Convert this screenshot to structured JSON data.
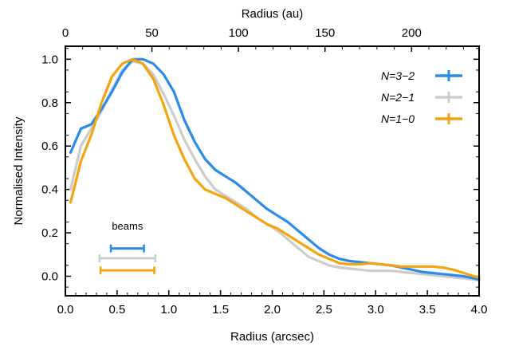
{
  "chart_data": {
    "type": "line",
    "xlabel": "Radius (arcsec)",
    "ylabel": "Normalised Intensity",
    "top_xlabel": "Radius (au)",
    "xlim": [
      0.0,
      4.0
    ],
    "ylim": [
      -0.09,
      1.06
    ],
    "top_xlim": [
      0,
      239
    ],
    "x_ticks": [
      0.0,
      0.5,
      1.0,
      1.5,
      2.0,
      2.5,
      3.0,
      3.5,
      4.0
    ],
    "x_tick_labels": [
      "0.0",
      "0.5",
      "1.0",
      "1.5",
      "2.0",
      "2.5",
      "3.0",
      "3.5",
      "4.0"
    ],
    "y_ticks": [
      0.0,
      0.2,
      0.4,
      0.6,
      0.8,
      1.0
    ],
    "y_tick_labels": [
      "0.0",
      "0.2",
      "0.4",
      "0.6",
      "0.8",
      "1.0"
    ],
    "top_ticks": [
      0,
      50,
      100,
      150,
      200
    ],
    "top_tick_labels": [
      "0",
      "50",
      "100",
      "150",
      "200"
    ],
    "grid": false,
    "legend_position": "top-right",
    "series": [
      {
        "name": "N=3−2",
        "color": "#2b8be8",
        "x": [
          0.05,
          0.15,
          0.25,
          0.35,
          0.45,
          0.55,
          0.65,
          0.75,
          0.85,
          0.95,
          1.05,
          1.15,
          1.25,
          1.35,
          1.45,
          1.55,
          1.65,
          1.75,
          1.85,
          1.95,
          2.05,
          2.15,
          2.25,
          2.35,
          2.45,
          2.55,
          2.65,
          2.75,
          2.85,
          2.95,
          3.05,
          3.15,
          3.25,
          3.35,
          3.45,
          3.55,
          3.65,
          3.75,
          3.85,
          3.95,
          4.0
        ],
        "y": [
          0.57,
          0.68,
          0.7,
          0.77,
          0.85,
          0.94,
          1.0,
          1.0,
          0.98,
          0.93,
          0.85,
          0.72,
          0.62,
          0.54,
          0.49,
          0.46,
          0.43,
          0.39,
          0.35,
          0.31,
          0.28,
          0.25,
          0.21,
          0.17,
          0.13,
          0.1,
          0.08,
          0.07,
          0.065,
          0.06,
          0.055,
          0.05,
          0.04,
          0.03,
          0.02,
          0.015,
          0.01,
          0.005,
          0.0,
          -0.01,
          -0.015
        ]
      },
      {
        "name": "N=2−1",
        "color": "#cccccc",
        "x": [
          0.05,
          0.15,
          0.25,
          0.35,
          0.45,
          0.55,
          0.65,
          0.75,
          0.85,
          0.95,
          1.05,
          1.15,
          1.25,
          1.35,
          1.45,
          1.55,
          1.65,
          1.75,
          1.85,
          1.95,
          2.05,
          2.15,
          2.25,
          2.35,
          2.45,
          2.55,
          2.65,
          2.75,
          2.85,
          2.95,
          3.05,
          3.15,
          3.25,
          3.35,
          3.45,
          3.55,
          3.65,
          3.75,
          3.85,
          3.95,
          4.0
        ],
        "y": [
          0.4,
          0.6,
          0.68,
          0.76,
          0.86,
          0.95,
          0.99,
          0.98,
          0.93,
          0.84,
          0.74,
          0.63,
          0.54,
          0.46,
          0.4,
          0.37,
          0.34,
          0.31,
          0.27,
          0.24,
          0.21,
          0.17,
          0.13,
          0.09,
          0.07,
          0.05,
          0.04,
          0.035,
          0.03,
          0.025,
          0.025,
          0.025,
          0.02,
          0.015,
          0.01,
          0.005,
          0.0,
          -0.005,
          -0.01,
          -0.015,
          -0.02
        ]
      },
      {
        "name": "N=1−0",
        "color": "#f5a30f",
        "x": [
          0.05,
          0.15,
          0.25,
          0.35,
          0.45,
          0.55,
          0.65,
          0.75,
          0.85,
          0.95,
          1.05,
          1.15,
          1.25,
          1.35,
          1.45,
          1.55,
          1.65,
          1.75,
          1.85,
          1.95,
          2.05,
          2.15,
          2.25,
          2.35,
          2.45,
          2.55,
          2.65,
          2.75,
          2.85,
          2.95,
          3.05,
          3.15,
          3.25,
          3.35,
          3.45,
          3.55,
          3.65,
          3.75,
          3.85,
          3.95,
          4.0
        ],
        "y": [
          0.34,
          0.53,
          0.65,
          0.8,
          0.92,
          0.98,
          1.0,
          0.98,
          0.91,
          0.79,
          0.65,
          0.54,
          0.45,
          0.4,
          0.38,
          0.36,
          0.33,
          0.3,
          0.27,
          0.24,
          0.22,
          0.19,
          0.16,
          0.13,
          0.1,
          0.08,
          0.06,
          0.055,
          0.055,
          0.06,
          0.055,
          0.05,
          0.045,
          0.045,
          0.045,
          0.045,
          0.04,
          0.03,
          0.015,
          0.0,
          -0.005
        ]
      }
    ],
    "beams": {
      "label": "beams",
      "bars": [
        {
          "series": 0,
          "x_start": 0.44,
          "x_end": 0.76,
          "y": 0.128
        },
        {
          "series": 1,
          "x_start": 0.33,
          "x_end": 0.87,
          "y": 0.083
        },
        {
          "series": 2,
          "x_start": 0.34,
          "x_end": 0.86,
          "y": 0.027
        }
      ]
    }
  }
}
